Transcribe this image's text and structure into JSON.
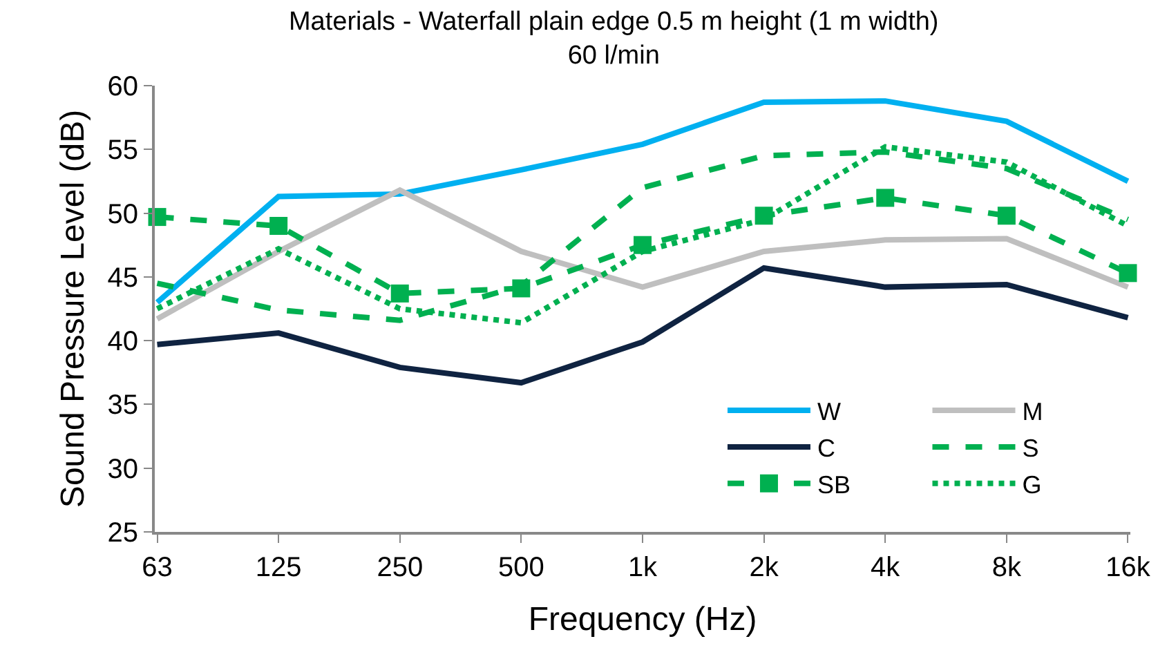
{
  "chart_data": {
    "type": "line",
    "title": "Materials - Waterfall plain edge 0.5 m height (1 m width)",
    "subtitle": "60 l/min",
    "xlabel": "Frequency (Hz)",
    "ylabel": "Sound Pressure Level (dB)",
    "categories": [
      "63",
      "125",
      "250",
      "500",
      "1k",
      "2k",
      "4k",
      "8k",
      "16k"
    ],
    "ylim": [
      25,
      60
    ],
    "yticks": [
      25,
      30,
      35,
      40,
      45,
      50,
      55,
      60
    ],
    "grid": false,
    "legend": "bottom right",
    "series": [
      {
        "name": "W",
        "color": "#00b0f0",
        "line_style": "solid",
        "marker": "none",
        "values": [
          43,
          51.3,
          51.5,
          53.4,
          55.4,
          58.7,
          58.8,
          57.2,
          52.5
        ]
      },
      {
        "name": "M",
        "color": "#bfbfbf",
        "line_style": "solid",
        "marker": "none",
        "values": [
          41.7,
          47.0,
          51.8,
          47.0,
          44.2,
          47.0,
          47.9,
          48.0,
          44.2
        ]
      },
      {
        "name": "C",
        "color": "#0f2341",
        "line_style": "solid",
        "marker": "none",
        "values": [
          39.7,
          40.6,
          37.9,
          36.7,
          39.9,
          45.7,
          44.2,
          44.4,
          41.8
        ]
      },
      {
        "name": "S",
        "color": "#00b050",
        "line_style": "dashed",
        "marker": "none",
        "values": [
          44.5,
          42.4,
          41.6,
          44.3,
          52.0,
          54.5,
          54.8,
          53.5,
          49.5
        ]
      },
      {
        "name": "SB",
        "color": "#00b050",
        "line_style": "dashed",
        "marker": "square",
        "values": [
          49.7,
          49.0,
          43.7,
          44.1,
          47.5,
          49.8,
          51.2,
          49.8,
          45.3
        ]
      },
      {
        "name": "G",
        "color": "#00b050",
        "line_style": "dotted",
        "marker": "none",
        "values": [
          42.5,
          47.2,
          42.5,
          41.4,
          47.0,
          49.5,
          55.2,
          54.0,
          49.0
        ]
      }
    ]
  }
}
